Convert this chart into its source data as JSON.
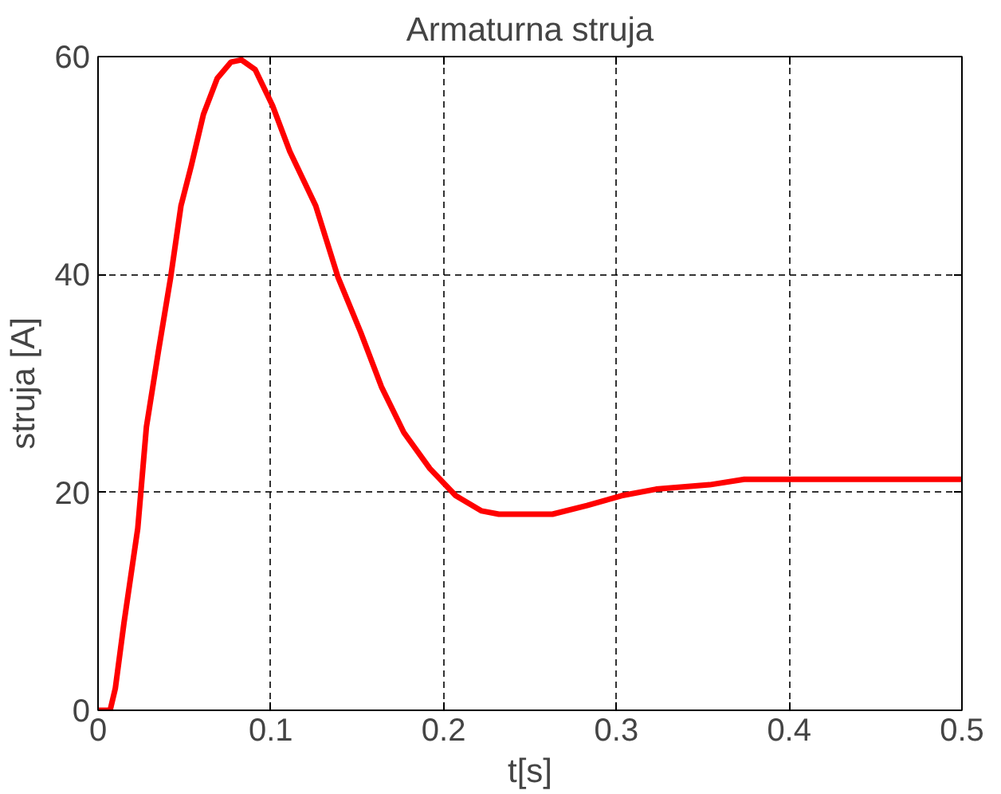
{
  "chart_data": {
    "type": "line",
    "title": "Armaturna struja",
    "xlabel": "t[s]",
    "ylabel": "struja [A]",
    "xlim": [
      0,
      0.5
    ],
    "ylim": [
      0,
      60
    ],
    "xticks": [
      0,
      0.1,
      0.2,
      0.3,
      0.4,
      0.5
    ],
    "yticks": [
      0,
      20,
      40,
      60
    ],
    "grid": true,
    "line_style": "solid",
    "marker": "none",
    "series": [
      {
        "color": "#ff0000",
        "x": [
          0,
          0.007,
          0.01,
          0.015,
          0.023,
          0.028,
          0.035,
          0.042,
          0.048,
          0.054,
          0.061,
          0.069,
          0.077,
          0.083,
          0.091,
          0.101,
          0.111,
          0.126,
          0.139,
          0.152,
          0.164,
          0.177,
          0.192,
          0.207,
          0.222,
          0.232,
          0.263,
          0.283,
          0.303,
          0.323,
          0.354,
          0.374,
          0.5
        ],
        "values": [
          0,
          0,
          2,
          8,
          16.7,
          26,
          33,
          39.7,
          46.3,
          50,
          54.7,
          58,
          59.5,
          59.7,
          58.8,
          55.5,
          51.3,
          46.3,
          39.7,
          34.7,
          29.7,
          25.5,
          22.2,
          19.7,
          18.3,
          18,
          18,
          18.8,
          19.7,
          20.3,
          20.7,
          21.2,
          21.2
        ]
      }
    ]
  }
}
